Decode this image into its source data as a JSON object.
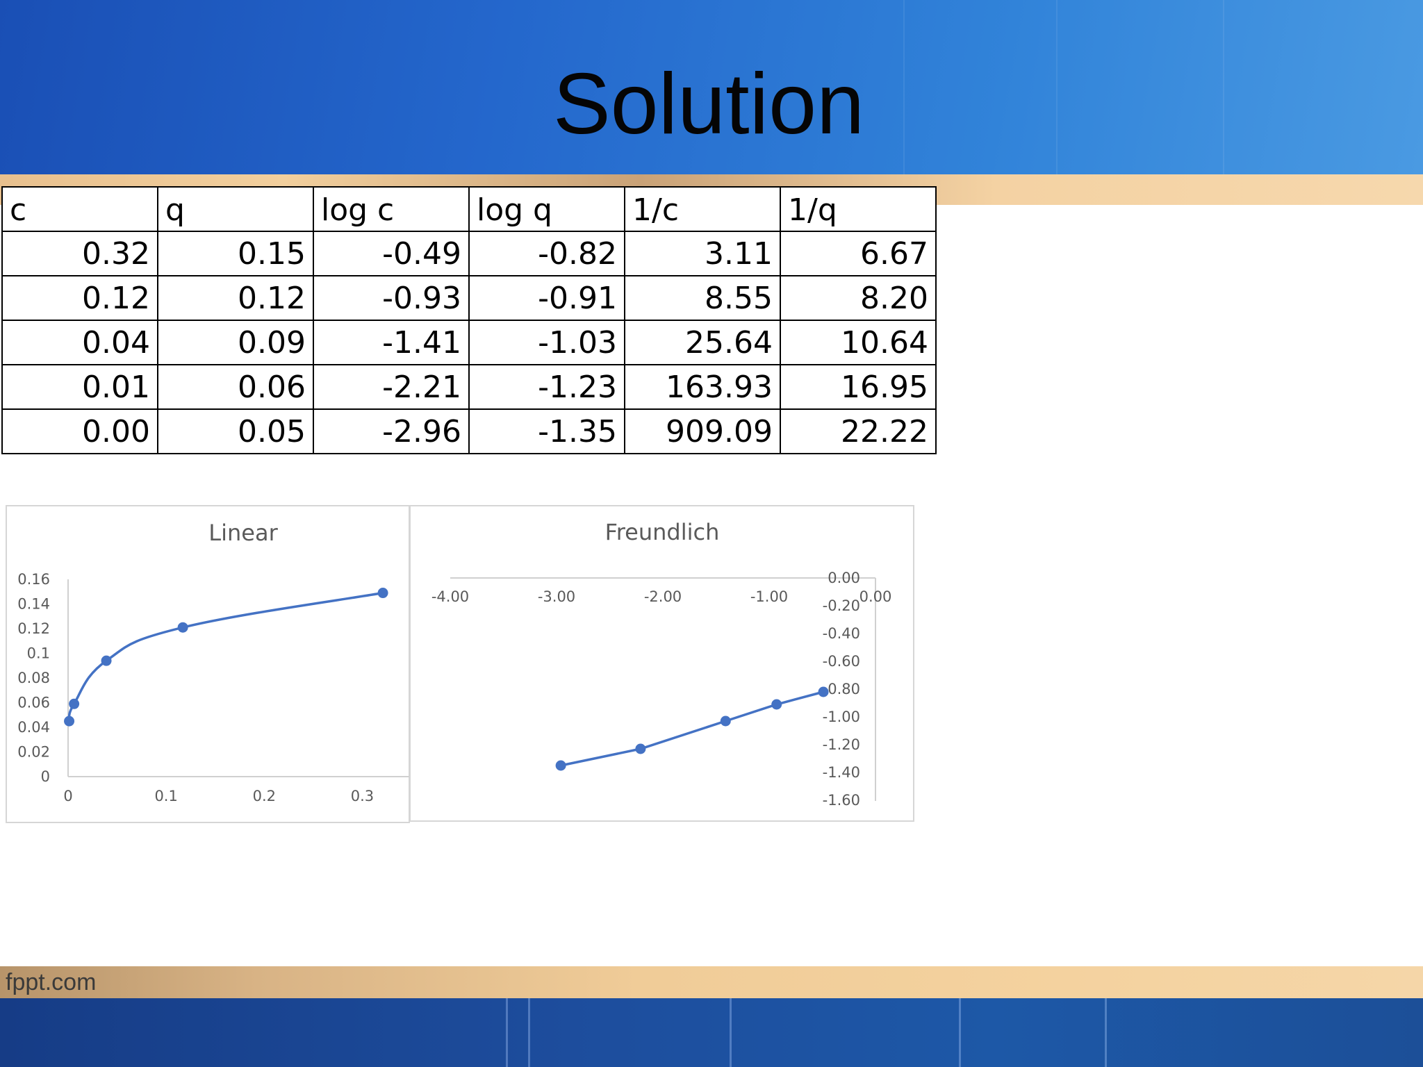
{
  "slide": {
    "title": "Solution",
    "footer": "fppt.com"
  },
  "table": {
    "headers": [
      "c",
      "q",
      "log c",
      "log q",
      "1/c",
      "1/q"
    ],
    "rows": [
      [
        "0.32",
        "0.15",
        "-0.49",
        "-0.82",
        "3.11",
        "6.67"
      ],
      [
        "0.12",
        "0.12",
        "-0.93",
        "-0.91",
        "8.55",
        "8.20"
      ],
      [
        "0.04",
        "0.09",
        "-1.41",
        "-1.03",
        "25.64",
        "10.64"
      ],
      [
        "0.01",
        "0.06",
        "-2.21",
        "-1.23",
        "163.93",
        "16.95"
      ],
      [
        "0.00",
        "0.05",
        "-2.96",
        "-1.35",
        "909.09",
        "22.22"
      ]
    ]
  },
  "chart_data": [
    {
      "type": "line",
      "title": "Linear",
      "xlabel": "",
      "ylabel": "",
      "x": [
        0.0011,
        0.0061,
        0.039,
        0.117,
        0.321
      ],
      "y": [
        0.045,
        0.059,
        0.094,
        0.121,
        0.149
      ],
      "xlim": [
        0,
        0.35
      ],
      "ylim": [
        0,
        0.16
      ],
      "x_ticks": [
        "0",
        "0.1",
        "0.2",
        "0.3"
      ],
      "y_ticks": [
        "0",
        "0.02",
        "0.04",
        "0.06",
        "0.08",
        "0.1",
        "0.12",
        "0.14",
        "0.16"
      ],
      "smooth": true,
      "grid": false,
      "color": "#4472c4"
    },
    {
      "type": "line",
      "title": "Freundlich",
      "xlabel": "",
      "ylabel": "",
      "x": [
        -2.96,
        -2.21,
        -1.41,
        -0.93,
        -0.49
      ],
      "y": [
        -1.35,
        -1.23,
        -1.03,
        -0.91,
        -0.82
      ],
      "xlim": [
        -4.0,
        0.0
      ],
      "ylim": [
        -1.6,
        0.0
      ],
      "x_ticks": [
        "-4.00",
        "-3.00",
        "-2.00",
        "-1.00",
        "0.00"
      ],
      "y_ticks": [
        "0.00",
        "-0.20",
        "-0.40",
        "-0.60",
        "-0.80",
        "-1.00",
        "-1.20",
        "-1.40",
        "-1.60"
      ],
      "grid": false,
      "color": "#4472c4"
    }
  ]
}
